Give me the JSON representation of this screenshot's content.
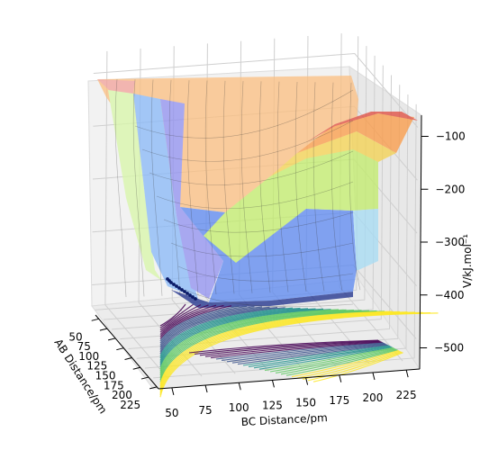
{
  "chart_data": {
    "type": "surface3d",
    "title": "",
    "xlabel": "AB Distance/pm",
    "ylabel": "BC Distance/pm",
    "zlabel": "V/kJ.mol⁻¹",
    "x_ticks": [
      50,
      75,
      100,
      125,
      150,
      175,
      200,
      225
    ],
    "y_ticks": [
      50,
      75,
      100,
      125,
      150,
      175,
      200,
      225
    ],
    "z_ticks": [
      -100,
      -200,
      -300,
      -400,
      -500
    ],
    "x_range": [
      40,
      230
    ],
    "y_range": [
      40,
      235
    ],
    "z_range": [
      -540,
      -60
    ],
    "grid": true,
    "surface_colormap": "jet",
    "contour_colormap": "viridis",
    "trajectory": {
      "points": [
        [
          72,
          225,
          -362
        ],
        [
          73,
          190,
          -366
        ],
        [
          74,
          160,
          -372
        ],
        [
          75,
          135,
          -378
        ],
        [
          76,
          115,
          -384
        ],
        [
          77,
          100,
          -392
        ],
        [
          78,
          90,
          -398
        ],
        [
          79,
          82,
          -406
        ],
        [
          80,
          77,
          -412
        ],
        [
          82,
          75,
          -418
        ],
        [
          84,
          74,
          -424
        ],
        [
          86,
          73,
          -430
        ]
      ]
    }
  }
}
